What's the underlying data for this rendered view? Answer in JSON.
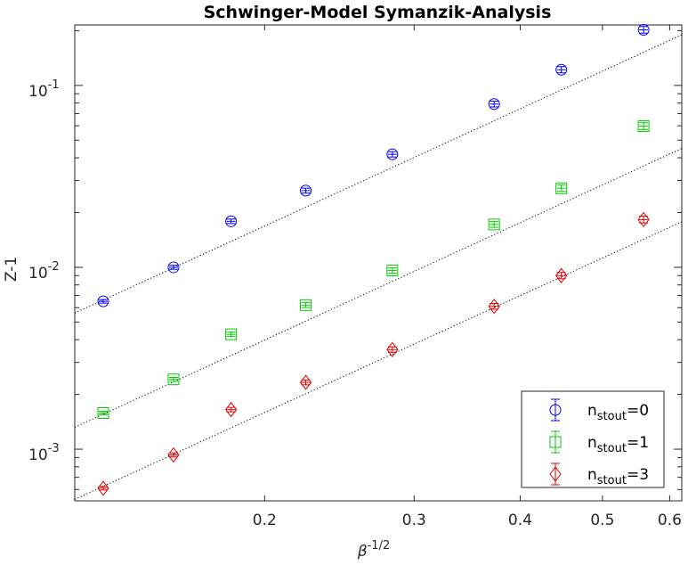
{
  "chart_data": {
    "type": "scatter",
    "title": "Schwinger-Model Symanzik-Analysis",
    "xlabel": "β^-1/2",
    "xlabel_base": "β",
    "xlabel_sup": "-1/2",
    "ylabel": "Z-1",
    "xscale": "log",
    "yscale": "log",
    "xlim": [
      0.1195,
      0.62
    ],
    "ylim": [
      0.00052,
      0.215
    ],
    "grid": false,
    "legend_position": "bottom-right",
    "x_ticks": [
      0.2,
      0.3,
      0.4,
      0.5,
      0.6
    ],
    "x_tick_labels": [
      "0.2",
      "0.3",
      "0.4",
      "0.5",
      "0.6"
    ],
    "y_ticks": [
      0.001,
      0.01,
      0.1
    ],
    "y_tick_labels": [
      {
        "base": "10",
        "exp": "-3"
      },
      {
        "base": "10",
        "exp": "-2"
      },
      {
        "base": "10",
        "exp": "-1"
      }
    ],
    "x": [
      0.1291,
      0.1562,
      0.1826,
      0.2236,
      0.2828,
      0.3727,
      0.4472,
      0.559
    ],
    "series": [
      {
        "name_base": "n",
        "name_sub": "stout",
        "name_suffix": "=0",
        "color": "#0000ff",
        "marker": "circle",
        "values": [
          0.0065,
          0.01,
          0.0179,
          0.0264,
          0.0418,
          0.079,
          0.122,
          0.202
        ],
        "fit": [
          0.0056,
          0.19
        ]
      },
      {
        "name_base": "n",
        "name_sub": "stout",
        "name_suffix": "=1",
        "color": "#00cc00",
        "marker": "square",
        "values": [
          0.00158,
          0.00242,
          0.00428,
          0.0062,
          0.0096,
          0.0172,
          0.0272,
          0.0597
        ],
        "fit": [
          0.00132,
          0.045
        ]
      },
      {
        "name_base": "n",
        "name_sub": "stout",
        "name_suffix": "=3",
        "color": "#dd0000",
        "marker": "diamond",
        "values": [
          0.00061,
          0.00093,
          0.00165,
          0.00233,
          0.00353,
          0.0061,
          0.009,
          0.0183
        ],
        "fit": [
          0.00053,
          0.0178
        ]
      }
    ]
  }
}
